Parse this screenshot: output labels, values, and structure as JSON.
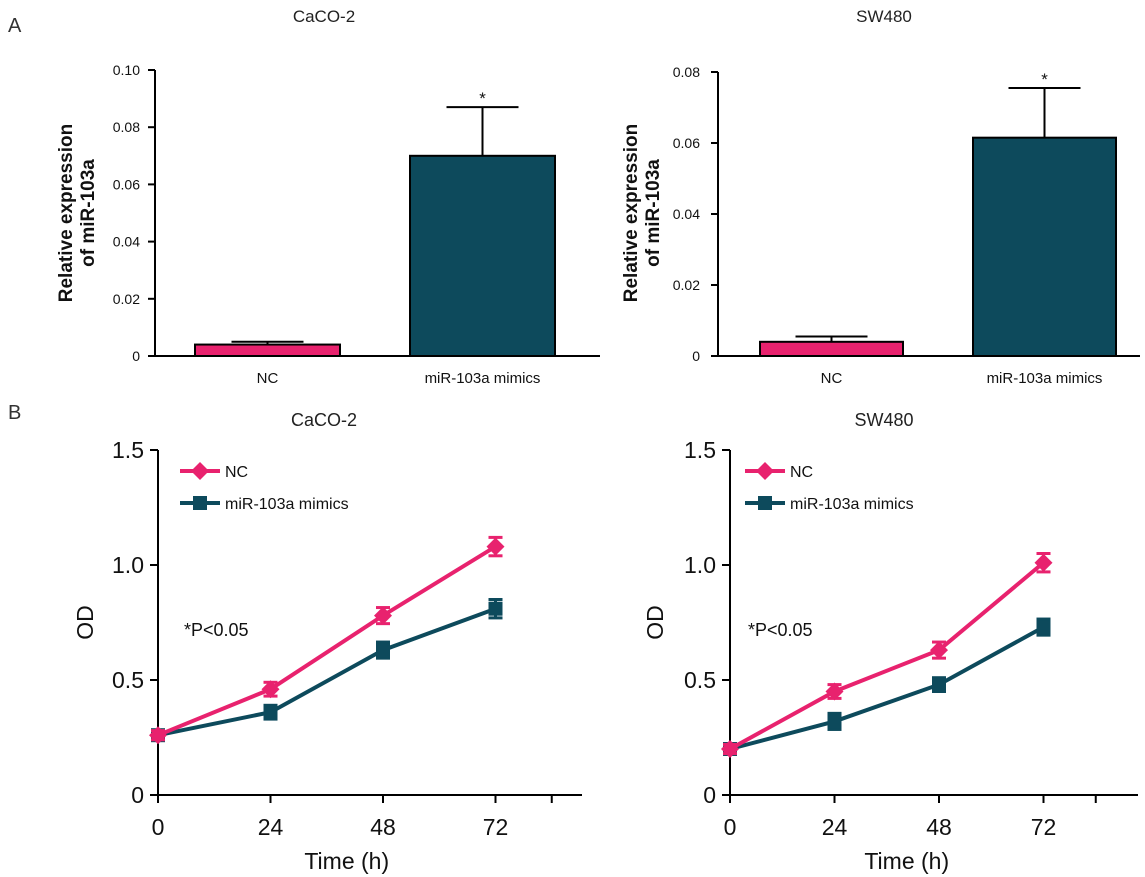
{
  "panel_labels": [
    "A",
    "B"
  ],
  "colors": {
    "nc": "#e8226e",
    "mimics": "#0d4a5c",
    "axis": "#000000"
  },
  "chart_data": [
    {
      "type": "bar",
      "title": "CaCO-2",
      "ylabel": "Relative expression of miR-103a",
      "ylabel_lines": [
        "Relative expression",
        "of miR-103a"
      ],
      "categories": [
        "NC",
        "miR-103a mimics"
      ],
      "values": [
        0.004,
        0.07
      ],
      "errors": [
        0.001,
        0.017
      ],
      "significance": [
        "",
        "*"
      ],
      "ylim": [
        0,
        0.1
      ],
      "yticks": [
        0,
        0.02,
        0.04,
        0.06,
        0.08,
        0.1
      ],
      "ytick_labels": [
        "0",
        "0.02",
        "0.04",
        "0.06",
        "0.08",
        "0.10"
      ]
    },
    {
      "type": "bar",
      "title": "SW480",
      "ylabel": "Relative expression of miR-103a",
      "ylabel_lines": [
        "Relative expression",
        "of miR-103a"
      ],
      "categories": [
        "NC",
        "miR-103a mimics"
      ],
      "values": [
        0.004,
        0.0615
      ],
      "errors": [
        0.0015,
        0.014
      ],
      "significance": [
        "",
        "*"
      ],
      "ylim": [
        0,
        0.08
      ],
      "yticks": [
        0,
        0.02,
        0.04,
        0.06,
        0.08
      ],
      "ytick_labels": [
        "0",
        "0.02",
        "0.04",
        "0.06",
        "0.08"
      ]
    },
    {
      "type": "line",
      "title": "CaCO-2",
      "xlabel": "Time (h)",
      "ylabel": "OD",
      "x": [
        0,
        24,
        48,
        72
      ],
      "xticks": [
        0,
        24,
        48,
        72
      ],
      "xlim": [
        0,
        96
      ],
      "ylim": [
        0,
        1.5
      ],
      "yticks": [
        0,
        0.5,
        1.0,
        1.5
      ],
      "ytick_labels": [
        "0",
        "0.5",
        "1.0",
        "1.5"
      ],
      "annotation": "*P<0.05",
      "series": [
        {
          "name": "NC",
          "values": [
            0.26,
            0.46,
            0.78,
            1.08
          ],
          "errors": [
            0.02,
            0.03,
            0.035,
            0.04
          ]
        },
        {
          "name": "miR-103a mimics",
          "values": [
            0.26,
            0.36,
            0.63,
            0.81
          ],
          "errors": [
            0.02,
            0.03,
            0.035,
            0.04
          ]
        }
      ]
    },
    {
      "type": "line",
      "title": "SW480",
      "xlabel": "Time (h)",
      "ylabel": "OD",
      "x": [
        0,
        24,
        48,
        72
      ],
      "xticks": [
        0,
        24,
        48,
        72
      ],
      "xlim": [
        0,
        96
      ],
      "ylim": [
        0,
        1.5
      ],
      "yticks": [
        0,
        0.5,
        1.0,
        1.5
      ],
      "ytick_labels": [
        "0",
        "0.5",
        "1.0",
        "1.5"
      ],
      "annotation": "*P<0.05",
      "series": [
        {
          "name": "NC",
          "values": [
            0.2,
            0.45,
            0.63,
            1.01
          ],
          "errors": [
            0.02,
            0.03,
            0.035,
            0.04
          ]
        },
        {
          "name": "miR-103a mimics",
          "values": [
            0.2,
            0.32,
            0.48,
            0.73
          ],
          "errors": [
            0.02,
            0.035,
            0.03,
            0.035
          ]
        }
      ]
    }
  ]
}
